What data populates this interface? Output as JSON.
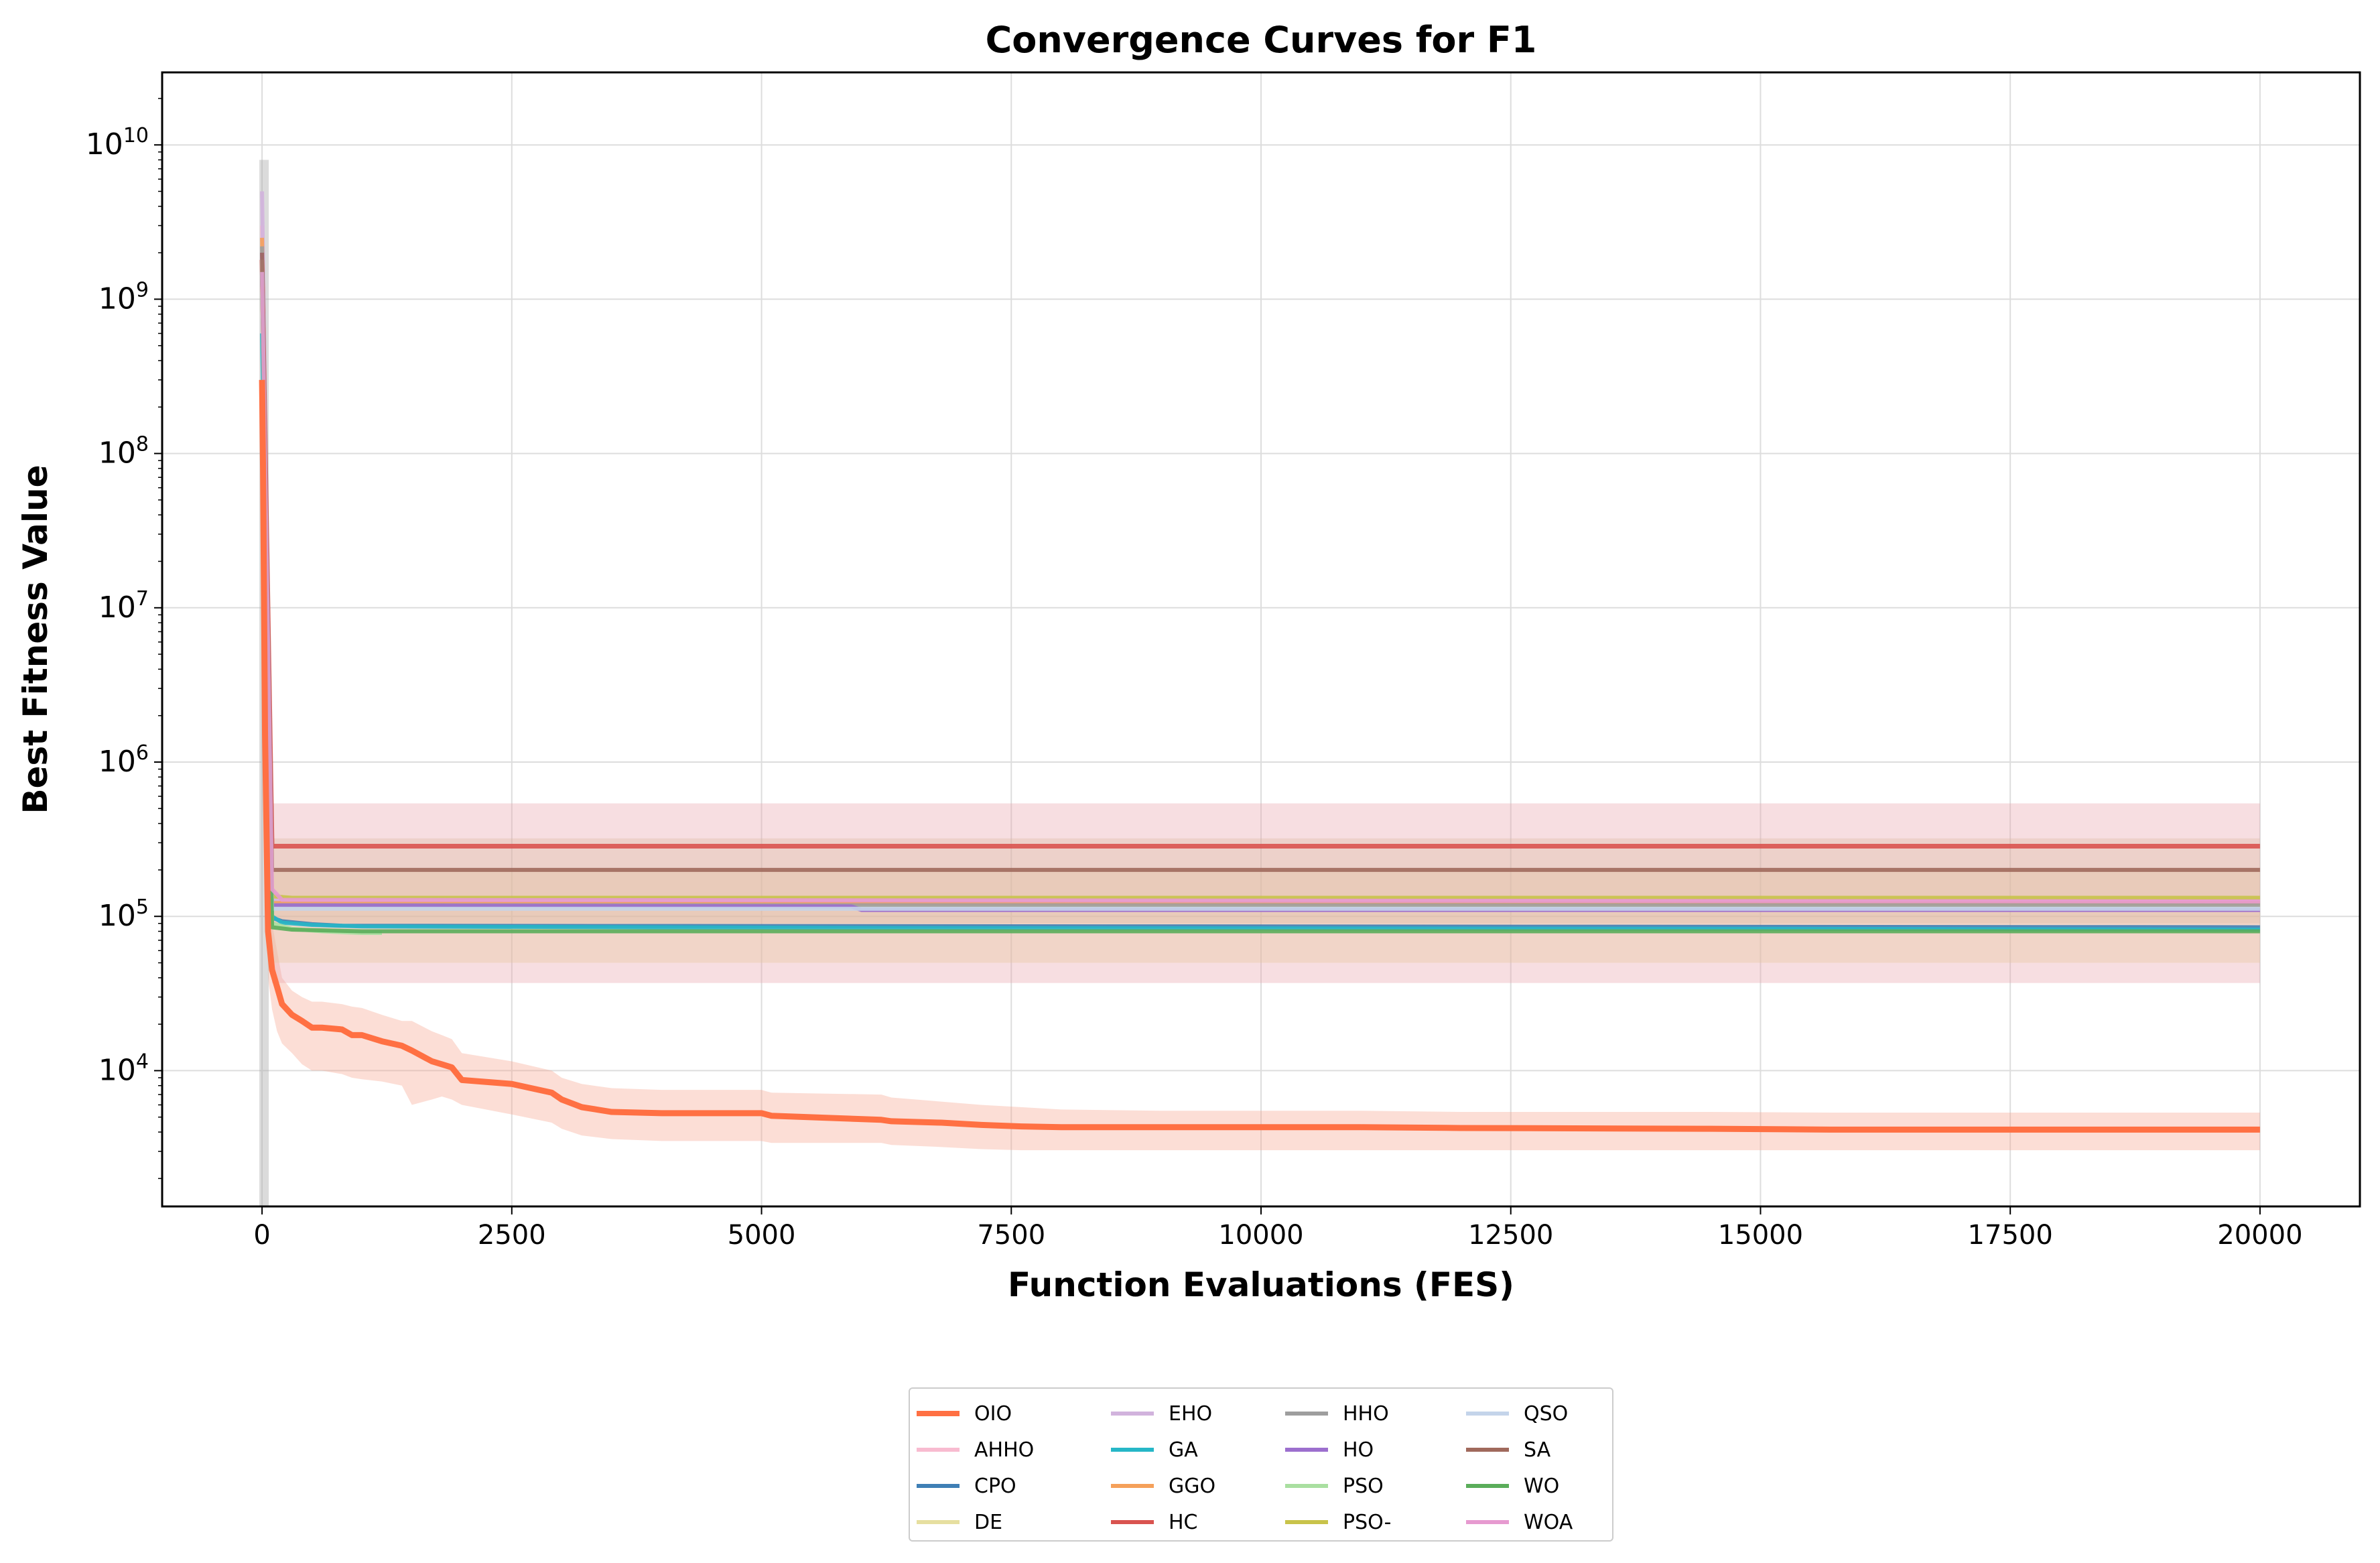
{
  "chart_data": {
    "type": "line",
    "title": "Convergence Curves for F1",
    "xlabel": "Function Evaluations (FES)",
    "ylabel": "Best Fitness Value",
    "xlim": [
      -1000,
      21000
    ],
    "ylim_log10": [
      3.12,
      10.47
    ],
    "yscale": "log",
    "grid": true,
    "legend_position": "below-center",
    "xticks": [
      0,
      2500,
      5000,
      7500,
      10000,
      12500,
      15000,
      17500,
      20000
    ],
    "xtick_labels": [
      "0",
      "2500",
      "5000",
      "7500",
      "10000",
      "12500",
      "15000",
      "17500",
      "20000"
    ],
    "yticks_log10": [
      4,
      5,
      6,
      7,
      8,
      9,
      10
    ],
    "ytick_base": "10",
    "ytick_exponents": [
      "4",
      "5",
      "6",
      "7",
      "8",
      "9",
      "10"
    ],
    "series": [
      {
        "name": "OIO",
        "color": "#ff7043",
        "width": 9,
        "x": [
          0,
          10,
          30,
          60,
          100,
          150,
          200,
          300,
          400,
          500,
          600,
          800,
          900,
          1000,
          1200,
          1400,
          1500,
          1700,
          1800,
          1900,
          2000,
          2500,
          2900,
          3000,
          3200,
          3500,
          4000,
          5000,
          5100,
          6200,
          6300,
          6800,
          7200,
          7600,
          8000,
          9000,
          11000,
          12000,
          14500,
          15700,
          20000
        ],
        "y": [
          300000000,
          80000000,
          1500000,
          80000,
          45000,
          35000,
          27000,
          23000,
          21000,
          19000,
          19000,
          18500,
          17000,
          17000,
          15500,
          14500,
          13500,
          11500,
          11000,
          10500,
          8700,
          8200,
          7200,
          6500,
          5800,
          5400,
          5300,
          5300,
          5100,
          4800,
          4700,
          4600,
          4450,
          4350,
          4300,
          4300,
          4300,
          4250,
          4200,
          4150,
          4150
        ],
        "band_low": [
          250000000,
          50000000,
          800000,
          40000,
          25000,
          18000,
          15000,
          13000,
          11000,
          10000,
          10000,
          9500,
          9000,
          8800,
          8500,
          8000,
          6000,
          6500,
          6800,
          6500,
          6000,
          5200,
          4600,
          4200,
          3800,
          3600,
          3500,
          3500,
          3400,
          3400,
          3300,
          3200,
          3100,
          3050,
          3050,
          3050,
          3050,
          3050,
          3050,
          3050,
          3050
        ],
        "band_high": [
          350000000,
          120000000,
          3000000,
          200000,
          90000,
          60000,
          40000,
          33000,
          30000,
          28000,
          28000,
          27000,
          26000,
          25500,
          23000,
          21000,
          21000,
          18000,
          17000,
          16000,
          13000,
          11500,
          10000,
          9000,
          8200,
          7700,
          7500,
          7500,
          7200,
          7000,
          6700,
          6300,
          6000,
          5800,
          5600,
          5500,
          5500,
          5400,
          5400,
          5350,
          5350
        ],
        "band_color": "#f7a08a"
      },
      {
        "name": "AHHO",
        "color": "#f8bbd0",
        "width": 6,
        "x": [
          0,
          100,
          300,
          20000
        ],
        "y": [
          3000000000,
          130000,
          125000,
          125000
        ]
      },
      {
        "name": "CPO",
        "color": "#3f7fb5",
        "width": 6,
        "x": [
          0,
          100,
          200,
          500,
          800,
          20000
        ],
        "y": [
          1500000000,
          98000,
          93000,
          89000,
          87000,
          85000
        ]
      },
      {
        "name": "DE",
        "color": "#e6dfa0",
        "width": 6,
        "x": [
          0,
          100,
          300,
          20000
        ],
        "y": [
          1200000000,
          118000,
          115000,
          115000
        ]
      },
      {
        "name": "EHO",
        "color": "#d1b3dd",
        "width": 6,
        "x": [
          0,
          100,
          300,
          20000
        ],
        "y": [
          5000000000,
          128000,
          122000,
          122000
        ]
      },
      {
        "name": "GA",
        "color": "#26b7c7",
        "width": 6,
        "x": [
          0,
          100,
          200,
          500,
          1000,
          6500,
          15700,
          20000
        ],
        "y": [
          600000000,
          100000,
          91000,
          88000,
          86000,
          84000,
          83000,
          82000
        ]
      },
      {
        "name": "GGO",
        "color": "#f5a05a",
        "width": 6,
        "x": [
          0,
          100,
          20000
        ],
        "y": [
          2500000000,
          122000,
          122000
        ]
      },
      {
        "name": "HC",
        "color": "#d9534f",
        "width": 7,
        "x": [
          0,
          100,
          20000
        ],
        "y": [
          1800000000,
          285000,
          285000
        ],
        "band_low": [
          1000000000,
          37000,
          37000
        ],
        "band_high": [
          2500000000,
          540000,
          540000
        ],
        "band_color": "#e8a0a8"
      },
      {
        "name": "HHO",
        "color": "#9e9e9e",
        "width": 6,
        "x": [
          0,
          100,
          20000
        ],
        "y": [
          2200000000,
          118000,
          118000
        ]
      },
      {
        "name": "HO",
        "color": "#9c6fce",
        "width": 6,
        "x": [
          0,
          100,
          5900,
          6000,
          20000
        ],
        "y": [
          2000000000,
          118000,
          116000,
          110000,
          110000
        ]
      },
      {
        "name": "PSO",
        "color": "#a9dfa0",
        "width": 6,
        "x": [
          0,
          100,
          300,
          600,
          1000,
          1200
        ],
        "y": [
          1500000000,
          90000,
          83000,
          80000,
          78000,
          78000
        ]
      },
      {
        "name": "PSO-",
        "color": "#c8c34a",
        "width": 6,
        "x": [
          0,
          100,
          300,
          20000
        ],
        "y": [
          1800000000,
          135000,
          132000,
          132000
        ],
        "band_low": [
          1200000000,
          50000,
          50000,
          50000
        ],
        "band_high": [
          2400000000,
          200000,
          200000,
          200000
        ],
        "band_color": "#e4c79a"
      },
      {
        "name": "QSO",
        "color": "#c4d4ea",
        "width": 6,
        "x": [
          0,
          100,
          20000
        ],
        "y": [
          1800000000,
          112000,
          112000
        ]
      },
      {
        "name": "SA",
        "color": "#a0695c",
        "width": 6,
        "x": [
          0,
          100,
          20000
        ],
        "y": [
          2000000000,
          200000,
          200000
        ],
        "band_low": [
          1500000000,
          90000,
          90000
        ],
        "band_high": [
          2500000000,
          320000,
          320000
        ],
        "band_color": "#d9b9a0"
      },
      {
        "name": "WO",
        "color": "#5aad5a",
        "width": 6,
        "x": [
          0,
          100,
          300,
          1000,
          20000
        ],
        "y": [
          1500000000,
          85000,
          82000,
          80000,
          80000
        ]
      },
      {
        "name": "WOA",
        "color": "#e69ad0",
        "width": 6,
        "x": [
          0,
          100,
          200,
          20000
        ],
        "y": [
          1500000000,
          150000,
          128000,
          125000
        ]
      }
    ]
  }
}
